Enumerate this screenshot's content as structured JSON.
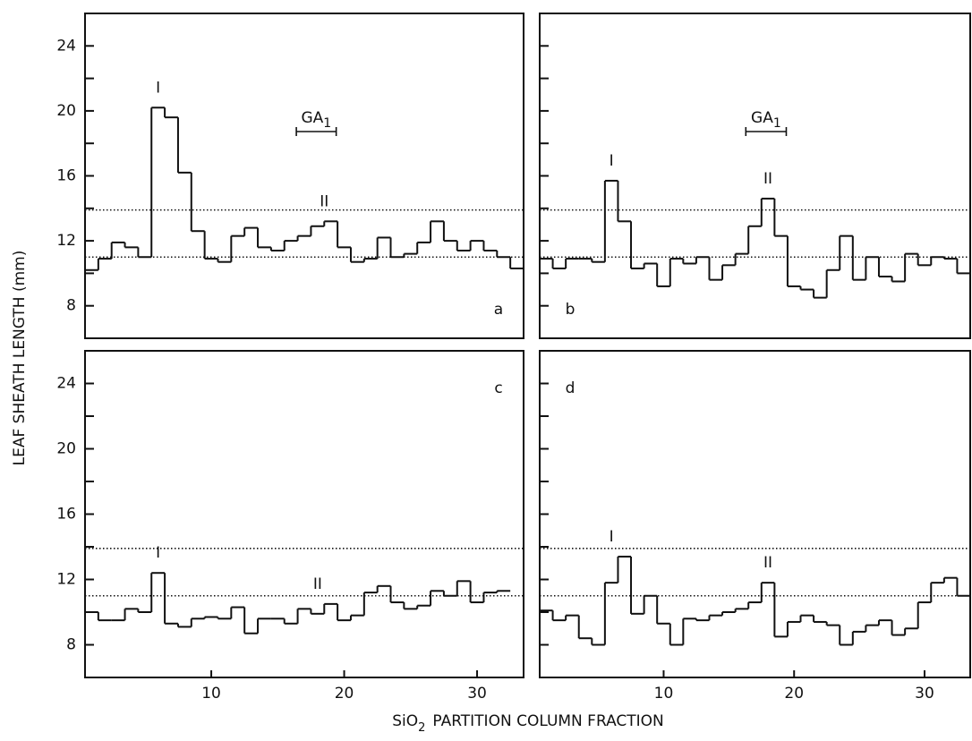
{
  "figure": {
    "y_label": "LEAF SHEATH LENGTH (mm)",
    "x_label": {
      "main": "SiO",
      "sub": "2",
      "rest": "PARTITION COLUMN FRACTION"
    }
  },
  "chart_data": [
    {
      "type": "histogram",
      "panel_label": "a",
      "panel_label_corner": "bottom-right",
      "bins": [
        0.5,
        1.5,
        2.5,
        3.5,
        4.5,
        5.5,
        6.5,
        7.5,
        8.5,
        9.5,
        10.5,
        11.5,
        12.5,
        13.5,
        14.5,
        15.5,
        16.5,
        17.5,
        18.5,
        19.5,
        20.5,
        21.5,
        22.5,
        23.5,
        24.5,
        25.5,
        26.5,
        27.5,
        28.5,
        29.5,
        30.5,
        31.5,
        32.5,
        33.5
      ],
      "values": [
        10.2,
        10.9,
        11.9,
        11.6,
        11,
        20.2,
        19.6,
        16.2,
        12.6,
        10.9,
        10.7,
        12.3,
        12.8,
        11.6,
        11.4,
        12.0,
        12.3,
        12.9,
        13.2,
        11.6,
        10.7,
        10.9,
        12.2,
        11,
        11.2,
        11.9,
        13.2,
        12.0,
        11.4,
        12.0,
        11.4,
        11.0,
        10.3
      ],
      "xlim": [
        0.5,
        33.5
      ],
      "ylim": [
        6,
        26
      ],
      "yticks": [
        8,
        12,
        16,
        20,
        24
      ],
      "yminor": [
        10,
        14,
        18,
        22
      ],
      "ytick_labels": true,
      "reference_lines": [
        11,
        13.9
      ],
      "peak_labels": [
        {
          "text": "I",
          "fraction": 6
        },
        {
          "text": "II",
          "fraction": 18.5
        }
      ],
      "bracket": {
        "text": "GA",
        "sub": "1",
        "range": [
          16.4,
          19.4
        ]
      }
    },
    {
      "type": "histogram",
      "panel_label": "b",
      "panel_label_corner": "bottom-left",
      "bins": [
        0.5,
        1.5,
        2.5,
        3.5,
        4.5,
        5.5,
        6.5,
        7.5,
        8.5,
        9.5,
        10.5,
        11.5,
        12.5,
        13.5,
        14.5,
        15.5,
        16.5,
        17.5,
        18.5,
        19.5,
        20.5,
        21.5,
        22.5,
        23.5,
        24.5,
        25.5,
        26.5,
        27.5,
        28.5,
        29.5,
        30.5,
        31.5,
        32.5,
        33.5
      ],
      "values": [
        10.9,
        10.3,
        10.9,
        10.9,
        10.7,
        15.7,
        13.2,
        10.3,
        10.6,
        9.2,
        10.9,
        10.6,
        11,
        9.6,
        10.5,
        11.2,
        12.9,
        14.6,
        12.3,
        9.2,
        9.0,
        8.5,
        10.2,
        12.3,
        9.6,
        11,
        9.8,
        9.5,
        11.2,
        10.5,
        11.0,
        10.9,
        10.0
      ],
      "xlim": [
        0.5,
        33.5
      ],
      "ylim": [
        6,
        26
      ],
      "yticks": [
        8,
        12,
        16,
        20,
        24
      ],
      "yminor": [
        10,
        14,
        18,
        22
      ],
      "ytick_labels": false,
      "reference_lines": [
        11,
        13.9
      ],
      "peak_labels": [
        {
          "text": "I",
          "fraction": 6
        },
        {
          "text": "II",
          "fraction": 18
        }
      ],
      "bracket": {
        "text": "GA",
        "sub": "1",
        "range": [
          16.3,
          19.4
        ]
      }
    },
    {
      "type": "histogram",
      "panel_label": "c",
      "panel_label_corner": "top-right",
      "bins": [
        0.5,
        1.5,
        2.5,
        3.5,
        4.5,
        5.5,
        6.5,
        7.5,
        8.5,
        9.5,
        10.5,
        11.5,
        12.5,
        13.5,
        14.5,
        15.5,
        16.5,
        17.5,
        18.5,
        19.5,
        20.5,
        21.5,
        22.5,
        23.5,
        24.5,
        25.5,
        26.5,
        27.5,
        28.5,
        29.5,
        30.5,
        31.5,
        32.5,
        33.5
      ],
      "values": [
        10.0,
        9.5,
        9.5,
        10.2,
        10.0,
        12.4,
        9.3,
        9.1,
        9.6,
        9.7,
        9.6,
        10.3,
        8.7,
        9.6,
        9.6,
        9.3,
        10.2,
        9.9,
        10.5,
        9.5,
        9.8,
        11.2,
        11.6,
        10.6,
        10.2,
        10.4,
        11.3,
        11.0,
        11.9,
        10.6,
        11.2,
        11.3,
        null
      ],
      "xlim": [
        0.5,
        33.5
      ],
      "ylim": [
        6,
        26
      ],
      "yticks": [
        8,
        12,
        16,
        20,
        24
      ],
      "yminor": [
        10,
        14,
        18,
        22
      ],
      "ytick_labels": true,
      "xticks": [
        10,
        20,
        30
      ],
      "reference_lines": [
        11,
        13.9
      ],
      "peak_labels": [
        {
          "text": "I",
          "fraction": 6
        },
        {
          "text": "II",
          "fraction": 18
        }
      ]
    },
    {
      "type": "histogram",
      "panel_label": "d",
      "panel_label_corner": "top-left",
      "bins": [
        0.5,
        1.5,
        2.5,
        3.5,
        4.5,
        5.5,
        6.5,
        7.5,
        8.5,
        9.5,
        10.5,
        11.5,
        12.5,
        13.5,
        14.5,
        15.5,
        16.5,
        17.5,
        18.5,
        19.5,
        20.5,
        21.5,
        22.5,
        23.5,
        24.5,
        25.5,
        26.5,
        27.5,
        28.5,
        29.5,
        30.5,
        31.5,
        32.5,
        33.5
      ],
      "values": [
        10.1,
        9.5,
        9.8,
        8.4,
        8.0,
        11.8,
        13.4,
        9.9,
        11,
        9.3,
        8.0,
        9.6,
        9.5,
        9.8,
        10.0,
        10.2,
        10.6,
        11.8,
        8.5,
        9.4,
        9.8,
        9.4,
        9.2,
        8.0,
        8.8,
        9.2,
        9.5,
        8.6,
        9.0,
        10.6,
        11.8,
        12.1,
        11.0
      ],
      "xlim": [
        0.5,
        33.5
      ],
      "ylim": [
        6,
        26
      ],
      "yticks": [
        8,
        12,
        16,
        20,
        24
      ],
      "yminor": [
        10,
        14,
        18,
        22
      ],
      "ytick_labels": false,
      "xticks": [
        10,
        20,
        30
      ],
      "reference_lines": [
        11,
        13.9
      ],
      "peak_labels": [
        {
          "text": "I",
          "fraction": 6
        },
        {
          "text": "II",
          "fraction": 18
        }
      ]
    }
  ]
}
